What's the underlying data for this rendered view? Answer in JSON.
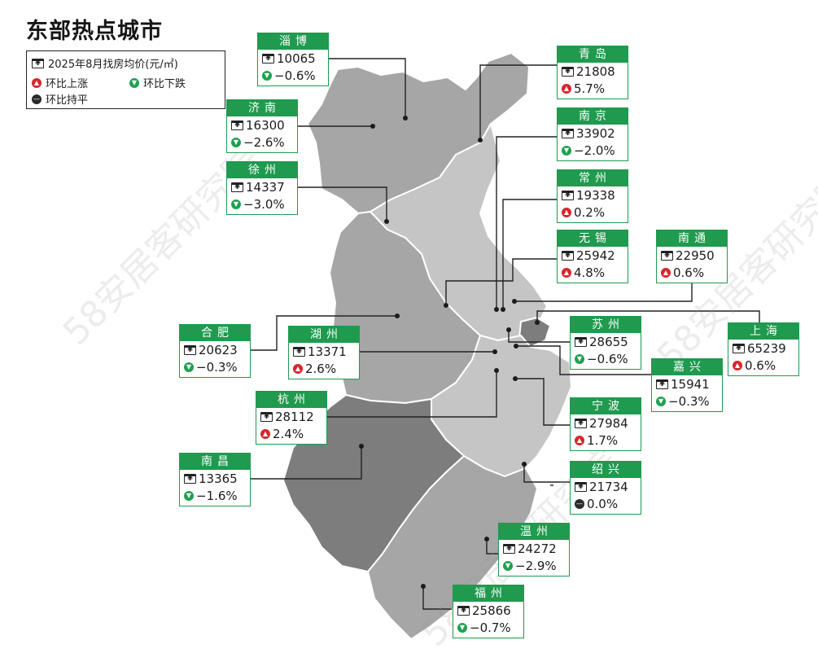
{
  "title": "东部热点城市",
  "legend": {
    "price_label": "2025年8月找房均价(元/㎡)",
    "up_label": "环比上涨",
    "down_label": "环比下跌",
    "flat_label": "环比持平"
  },
  "watermark_text": "58安居客研究院",
  "colors": {
    "accent_green": "#1f9a4e",
    "up_red": "#d9252b",
    "down_green": "#1fa150",
    "flat_black": "#2b2b2b",
    "region_light": "#c5c5c5",
    "region_mid": "#a6a6a6",
    "region_dark": "#7d7d7d"
  },
  "icons": {
    "price": "house-yuan-icon",
    "up": "arrow-up-icon",
    "down": "arrow-down-icon",
    "flat": "minus-icon"
  },
  "cities": [
    {
      "name": "淄博",
      "price": "10065",
      "change": "−0.6%",
      "trend": "down"
    },
    {
      "name": "青岛",
      "price": "21808",
      "change": "5.7%",
      "trend": "up"
    },
    {
      "name": "济南",
      "price": "16300",
      "change": "−2.6%",
      "trend": "down"
    },
    {
      "name": "南京",
      "price": "33902",
      "change": "−2.0%",
      "trend": "down"
    },
    {
      "name": "徐州",
      "price": "14337",
      "change": "−3.0%",
      "trend": "down"
    },
    {
      "name": "常州",
      "price": "19338",
      "change": "0.2%",
      "trend": "up"
    },
    {
      "name": "无锡",
      "price": "25942",
      "change": "4.8%",
      "trend": "up"
    },
    {
      "name": "南通",
      "price": "22950",
      "change": "0.6%",
      "trend": "up"
    },
    {
      "name": "合肥",
      "price": "20623",
      "change": "−0.3%",
      "trend": "down"
    },
    {
      "name": "湖州",
      "price": "13371",
      "change": "2.6%",
      "trend": "up"
    },
    {
      "name": "苏州",
      "price": "28655",
      "change": "−0.6%",
      "trend": "down"
    },
    {
      "name": "上海",
      "price": "65239",
      "change": "0.6%",
      "trend": "up"
    },
    {
      "name": "嘉兴",
      "price": "15941",
      "change": "−0.3%",
      "trend": "down"
    },
    {
      "name": "杭州",
      "price": "28112",
      "change": "2.4%",
      "trend": "up"
    },
    {
      "name": "宁波",
      "price": "27984",
      "change": "1.7%",
      "trend": "up"
    },
    {
      "name": "南昌",
      "price": "13365",
      "change": "−1.6%",
      "trend": "down"
    },
    {
      "name": "绍兴",
      "price": "21734",
      "change": "0.0%",
      "trend": "flat"
    },
    {
      "name": "温州",
      "price": "24272",
      "change": "−2.9%",
      "trend": "down"
    },
    {
      "name": "福州",
      "price": "25866",
      "change": "−0.7%",
      "trend": "down"
    }
  ]
}
